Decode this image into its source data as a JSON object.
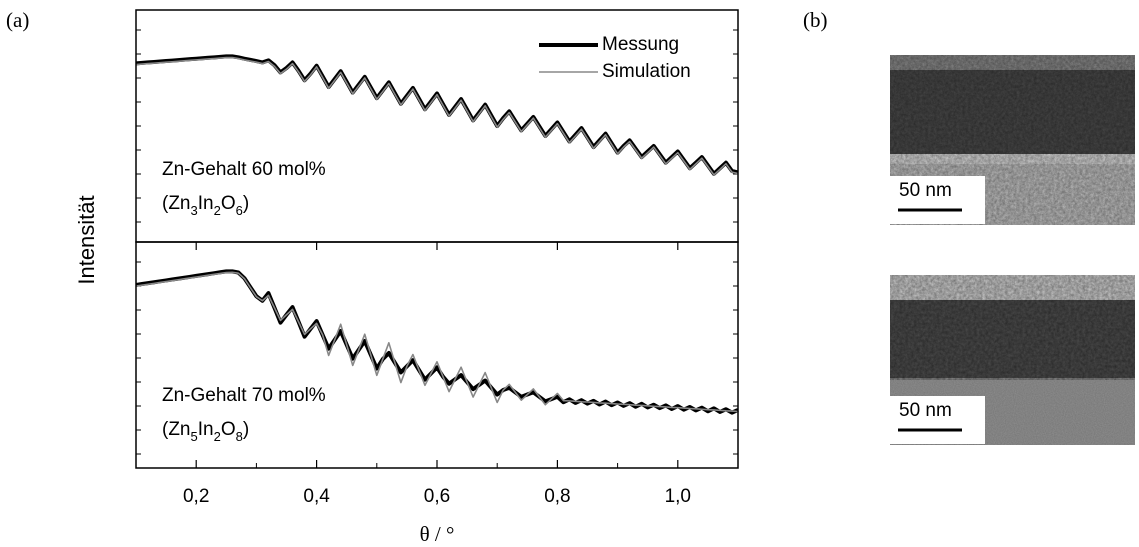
{
  "panel_labels": [
    "(a)",
    "(b)"
  ],
  "images": [
    {
      "scale_label": "50 nm"
    },
    {
      "scale_label": "50 nm"
    }
  ],
  "chart_data": [
    {
      "type": "line",
      "ylabel": "Intensität",
      "legend": "upper right",
      "xlim": [
        0.1,
        1.1
      ],
      "ylim": [
        0,
        100
      ],
      "annotation": "Zn-Gehalt 60 mol%",
      "formula": [
        "(Zn",
        "3",
        "In",
        "2",
        "O",
        "6",
        ")"
      ],
      "x": [
        0.1,
        0.11,
        0.12,
        0.13,
        0.14,
        0.15,
        0.16,
        0.17,
        0.18,
        0.19,
        0.2,
        0.21,
        0.22,
        0.23,
        0.24,
        0.25,
        0.26,
        0.27,
        0.28,
        0.29,
        0.3,
        0.31,
        0.32,
        0.33,
        0.34,
        0.35,
        0.36,
        0.37,
        0.38,
        0.39,
        0.4,
        0.41,
        0.42,
        0.43,
        0.44,
        0.45,
        0.46,
        0.47,
        0.48,
        0.49,
        0.5,
        0.51,
        0.52,
        0.53,
        0.54,
        0.55,
        0.56,
        0.57,
        0.58,
        0.59,
        0.6,
        0.61,
        0.62,
        0.63,
        0.64,
        0.65,
        0.66,
        0.67,
        0.68,
        0.69,
        0.7,
        0.71,
        0.72,
        0.73,
        0.74,
        0.75,
        0.76,
        0.77,
        0.78,
        0.79,
        0.8,
        0.81,
        0.82,
        0.83,
        0.84,
        0.85,
        0.86,
        0.87,
        0.88,
        0.89,
        0.9,
        0.91,
        0.92,
        0.93,
        0.94,
        0.95,
        0.96,
        0.97,
        0.98,
        0.99,
        1.0,
        1.01,
        1.02,
        1.03,
        1.04,
        1.05,
        1.06,
        1.07,
        1.08,
        1.09,
        1.1
      ],
      "series": [
        {
          "name": "Messung",
          "color": "#000000",
          "values": [
            77.0,
            77.2,
            77.4,
            77.6,
            77.8,
            78.0,
            78.2,
            78.4,
            78.6,
            78.8,
            79.0,
            79.2,
            79.4,
            79.6,
            79.8,
            80.0,
            80.0,
            79.6,
            79.0,
            78.5,
            78.0,
            77.4,
            78.3,
            76.2,
            73.1,
            75.0,
            77.4,
            73.8,
            69.7,
            72.6,
            76.0,
            71.4,
            66.8,
            70.2,
            73.6,
            69.0,
            64.4,
            67.8,
            71.2,
            66.6,
            62.0,
            65.4,
            68.8,
            64.2,
            59.6,
            63.0,
            66.4,
            61.8,
            57.2,
            60.6,
            64.0,
            59.4,
            54.8,
            58.2,
            61.6,
            57.0,
            52.4,
            55.8,
            59.2,
            54.6,
            50.0,
            53.4,
            56.3,
            52.2,
            48.1,
            51.0,
            53.9,
            49.8,
            45.7,
            48.6,
            51.5,
            47.4,
            43.3,
            46.2,
            49.1,
            45.0,
            40.9,
            43.8,
            46.7,
            42.6,
            38.5,
            41.4,
            43.8,
            40.2,
            36.6,
            39.0,
            41.4,
            37.8,
            34.2,
            36.6,
            39.0,
            35.4,
            31.8,
            34.2,
            36.6,
            33.0,
            29.4,
            31.8,
            34.2,
            30.6,
            30.0
          ]
        },
        {
          "name": "Simulation",
          "color": "#888888",
          "values": [
            76.5,
            76.7,
            76.9,
            77.1,
            77.3,
            77.5,
            77.7,
            77.9,
            78.1,
            78.3,
            78.5,
            78.7,
            78.9,
            79.1,
            79.3,
            79.5,
            79.5,
            79.1,
            78.5,
            78.0,
            77.5,
            76.9,
            77.8,
            75.7,
            72.6,
            74.5,
            76.9,
            73.3,
            69.2,
            72.1,
            75.5,
            70.9,
            66.3,
            69.7,
            73.1,
            68.5,
            63.9,
            67.3,
            70.7,
            66.1,
            61.5,
            64.9,
            68.3,
            63.7,
            59.1,
            62.5,
            65.9,
            61.3,
            56.7,
            60.1,
            63.5,
            58.9,
            54.3,
            57.7,
            61.1,
            56.5,
            51.9,
            55.3,
            58.7,
            54.1,
            49.5,
            52.9,
            55.8,
            51.7,
            47.6,
            50.5,
            53.4,
            49.3,
            45.2,
            48.1,
            51.0,
            46.9,
            42.8,
            45.7,
            48.6,
            44.5,
            40.4,
            43.3,
            46.2,
            42.1,
            38.0,
            40.9,
            43.3,
            39.7,
            36.1,
            38.5,
            40.9,
            37.3,
            33.7,
            36.1,
            38.5,
            34.9,
            31.3,
            33.7,
            36.1,
            32.5,
            28.9,
            31.3,
            33.7,
            30.1,
            29.5
          ]
        }
      ]
    },
    {
      "type": "line",
      "xlabel": "θ / °",
      "xlim": [
        0.1,
        1.1
      ],
      "ylim": [
        0,
        100
      ],
      "xticks": [
        {
          "value": 0.2,
          "label": "0,2"
        },
        {
          "value": 0.4,
          "label": "0,4"
        },
        {
          "value": 0.6,
          "label": "0,6"
        },
        {
          "value": 0.8,
          "label": "0,8"
        },
        {
          "value": 1.0,
          "label": "1,0"
        }
      ],
      "annotation": "Zn-Gehalt 70 mol%",
      "formula": [
        "(Zn",
        "5",
        "In",
        "2",
        "O",
        "8",
        ")"
      ],
      "x": [
        0.1,
        0.11,
        0.12,
        0.13,
        0.14,
        0.15,
        0.16,
        0.17,
        0.18,
        0.19,
        0.2,
        0.21,
        0.22,
        0.23,
        0.24,
        0.25,
        0.26,
        0.27,
        0.28,
        0.29,
        0.3,
        0.31,
        0.32,
        0.33,
        0.34,
        0.35,
        0.36,
        0.37,
        0.38,
        0.39,
        0.4,
        0.41,
        0.42,
        0.43,
        0.44,
        0.45,
        0.46,
        0.47,
        0.48,
        0.49,
        0.5,
        0.51,
        0.52,
        0.53,
        0.54,
        0.55,
        0.56,
        0.57,
        0.58,
        0.59,
        0.6,
        0.61,
        0.62,
        0.63,
        0.64,
        0.65,
        0.66,
        0.67,
        0.68,
        0.69,
        0.7,
        0.71,
        0.72,
        0.73,
        0.74,
        0.75,
        0.76,
        0.77,
        0.78,
        0.79,
        0.8,
        0.81,
        0.82,
        0.83,
        0.84,
        0.85,
        0.86,
        0.87,
        0.88,
        0.89,
        0.9,
        0.91,
        0.92,
        0.93,
        0.94,
        0.95,
        0.96,
        0.97,
        0.98,
        0.99,
        1.0,
        1.01,
        1.02,
        1.03,
        1.04,
        1.05,
        1.06,
        1.07,
        1.08,
        1.09,
        1.1
      ],
      "series": [
        {
          "name": "Messung",
          "color": "#000000",
          "values": [
            81,
            81.4,
            81.8,
            82.2,
            82.6,
            83,
            83.4,
            83.8,
            84.2,
            84.6,
            85,
            85.4,
            85.8,
            86.2,
            86.6,
            87,
            87,
            86.5,
            84,
            80,
            76,
            74,
            77.4,
            70.9,
            64.3,
            67.8,
            71.2,
            64.7,
            58.1,
            61.6,
            65,
            58.9,
            52.8,
            56.7,
            60.6,
            54.5,
            48.4,
            52.3,
            56.2,
            50.1,
            44,
            48.2,
            50.9,
            46.6,
            42.3,
            45.0,
            47.7,
            43.4,
            39.1,
            41.8,
            44.5,
            40.4,
            37.3,
            39.2,
            41.1,
            38.0,
            34.9,
            36.8,
            38.7,
            35.6,
            32.5,
            34.5,
            35.5,
            33.5,
            31.5,
            32.5,
            33.5,
            31.5,
            29.5,
            30.5,
            31.5,
            29.1,
            30.4,
            28.8,
            30.0,
            28.5,
            29.7,
            28.1,
            29.4,
            27.8,
            29.0,
            27.5,
            28.7,
            27.1,
            28.4,
            26.8,
            28.0,
            26.5,
            27.7,
            26.1,
            27.4,
            25.8,
            27.0,
            25.5,
            26.7,
            25.1,
            26.4,
            24.8,
            26.0,
            24.5,
            25.7
          ]
        },
        {
          "name": "Simulation",
          "color": "#888888",
          "values": [
            80.5,
            80.9,
            81.3,
            81.7,
            82.1,
            82.5,
            82.9,
            83.3,
            83.7,
            84.1,
            84.5,
            84.9,
            85.3,
            85.7,
            86.1,
            86.5,
            86.6,
            86.2,
            83.8,
            79.8,
            75.8,
            74,
            76.4,
            70.9,
            65.3,
            67.8,
            70.2,
            64.7,
            59.1,
            61.6,
            64,
            58.9,
            49.8,
            56.7,
            63.6,
            54.5,
            45.4,
            52.3,
            59.2,
            50.1,
            41,
            48.2,
            55.4,
            46.6,
            37.8,
            45.0,
            50.2,
            43.4,
            36.6,
            41.8,
            47,
            40.4,
            33.8,
            39.2,
            44.6,
            38.0,
            31.4,
            36.8,
            42.2,
            35.6,
            29,
            34.5,
            37,
            33.5,
            30,
            32.5,
            35,
            31.5,
            28,
            30.5,
            33,
            29.8,
            29.7,
            29.5,
            29.3,
            29.2,
            29.0,
            28.8,
            28.7,
            28.5,
            28.3,
            28.2,
            28.0,
            27.8,
            27.7,
            27.5,
            27.3,
            27.2,
            27.0,
            26.8,
            26.7,
            26.5,
            26.3,
            26.2,
            26.0,
            25.8,
            25.7,
            25.5,
            25.3,
            25.2,
            25.0
          ]
        }
      ]
    }
  ]
}
